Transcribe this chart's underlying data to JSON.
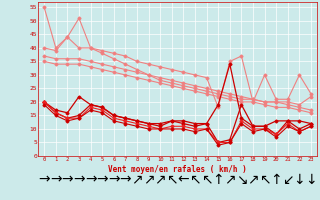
{
  "bg_color": "#cceaea",
  "grid_color": "#ffffff",
  "xlabel": "Vent moyen/en rafales ( km/h )",
  "x": [
    0,
    1,
    2,
    3,
    4,
    5,
    6,
    7,
    8,
    9,
    10,
    11,
    12,
    13,
    14,
    15,
    16,
    17,
    18,
    19,
    20,
    21,
    22,
    23
  ],
  "ylim": [
    0,
    57
  ],
  "yticks": [
    0,
    5,
    10,
    15,
    20,
    25,
    30,
    35,
    40,
    45,
    50,
    55
  ],
  "line1_color": "#f08080",
  "line2_color": "#f08080",
  "line3_color": "#f08080",
  "line4_color": "#f08080",
  "line_dark": "#cc0000",
  "line_mid": "#ee2222",
  "line1": [
    55,
    40,
    44,
    51,
    40,
    39,
    38,
    37,
    35,
    34,
    33,
    32,
    31,
    30,
    29,
    18,
    35,
    37,
    20,
    30,
    21,
    21,
    30,
    23
  ],
  "line2": [
    40,
    39,
    44,
    40,
    40,
    38,
    36,
    34,
    32,
    30,
    28,
    27,
    26,
    25,
    24,
    23,
    22,
    21,
    21,
    20,
    20,
    20,
    19,
    22
  ],
  "line3": [
    37,
    36,
    36,
    36,
    35,
    34,
    33,
    32,
    31,
    30,
    29,
    28,
    27,
    26,
    25,
    24,
    23,
    22,
    21,
    20,
    20,
    19,
    18,
    17
  ],
  "line4": [
    35,
    34,
    34,
    34,
    33,
    32,
    31,
    30,
    29,
    28,
    27,
    26,
    25,
    24,
    23,
    22,
    21,
    20,
    20,
    19,
    18,
    18,
    17,
    16
  ],
  "line5": [
    20,
    17,
    16,
    22,
    19,
    18,
    15,
    14,
    13,
    12,
    12,
    13,
    13,
    12,
    12,
    19,
    34,
    14,
    11,
    11,
    13,
    13,
    13,
    12
  ],
  "line6": [
    20,
    16,
    14,
    15,
    19,
    18,
    15,
    14,
    13,
    12,
    11,
    13,
    12,
    11,
    12,
    5,
    6,
    19,
    11,
    11,
    8,
    13,
    10,
    12
  ],
  "line7": [
    20,
    16,
    14,
    14,
    18,
    17,
    14,
    13,
    12,
    11,
    10,
    11,
    11,
    10,
    10,
    5,
    5,
    13,
    10,
    10,
    8,
    12,
    9,
    11
  ],
  "line8": [
    19,
    15,
    13,
    14,
    17,
    16,
    13,
    12,
    11,
    10,
    10,
    10,
    10,
    9,
    10,
    4,
    5,
    12,
    9,
    10,
    7,
    11,
    9,
    11
  ],
  "wind_dirs": [
    "→",
    "→",
    "→",
    "→",
    "→",
    "→",
    "→",
    "→",
    "↗",
    "↗",
    "↗",
    "↖",
    "←",
    "↖",
    "↖",
    "↑",
    "↗",
    "↘",
    "↗",
    "↖",
    "↑",
    "↙",
    "↓",
    "↓"
  ]
}
